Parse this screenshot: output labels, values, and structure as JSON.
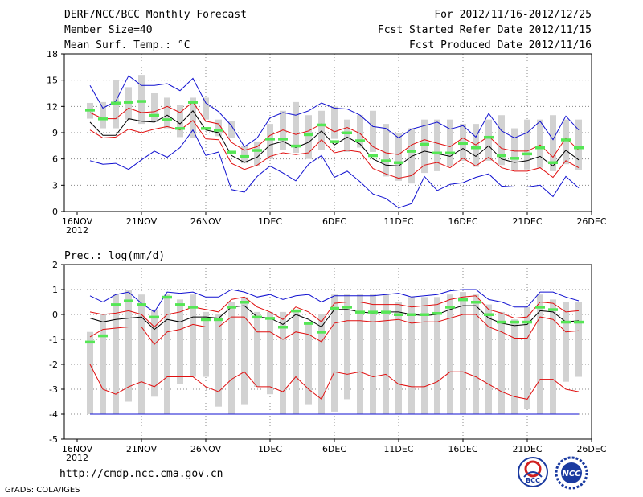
{
  "header": {
    "title": "DERF/NCC/BCC Monthly Forecast",
    "member_size": "Member Size=40",
    "variable": "Mean Surf. Temp.: °C",
    "period": "For 2012/11/16-2012/12/25",
    "fcst_started": "Fcst Started Refer Date 2012/11/15",
    "fcst_produced": "Fcst Produced Date 2012/11/16"
  },
  "footer": {
    "url": "http://cmdp.ncc.cma.gov.cn",
    "credit": "GrADS: COLA/IGES",
    "logo1": "BCC",
    "logo2": "NCC"
  },
  "colors": {
    "box": "#d2d2d2",
    "median": "#55e655",
    "mean": "#000000",
    "sd": "#e01010",
    "env": "#1010d0",
    "grid": "#888888"
  },
  "chart_data": [
    {
      "type": "box-ensemble",
      "title": "Mean Surf. Temp.: °C",
      "ylim": [
        0,
        18
      ],
      "yticks": [
        0,
        3,
        6,
        9,
        12,
        15,
        18
      ],
      "xlim": [
        0,
        40
      ],
      "xticks": [
        {
          "x": 0,
          "label": "16NOV",
          "sub": "2012"
        },
        {
          "x": 5,
          "label": "21NOV"
        },
        {
          "x": 10,
          "label": "26NOV"
        },
        {
          "x": 15,
          "label": "1DEC"
        },
        {
          "x": 20,
          "label": "6DEC"
        },
        {
          "x": 25,
          "label": "11DEC"
        },
        {
          "x": 30,
          "label": "16DEC"
        },
        {
          "x": 35,
          "label": "21DEC"
        },
        {
          "x": 40,
          "label": "26DEC"
        }
      ],
      "days": [
        1,
        2,
        3,
        4,
        5,
        6,
        7,
        8,
        9,
        10,
        11,
        12,
        13,
        14,
        15,
        16,
        17,
        18,
        19,
        20,
        21,
        22,
        23,
        24,
        25,
        26,
        27,
        28,
        29,
        30,
        31,
        32,
        33,
        34,
        35,
        36,
        37,
        38,
        39
      ],
      "box_low": [
        10.6,
        9.5,
        9.5,
        10.5,
        10.0,
        10.2,
        9.5,
        8.5,
        8.4,
        10.5,
        8.6,
        8.4,
        5.5,
        5.2,
        6.0,
        7.0,
        6.7,
        6.0,
        7.0,
        8.3,
        6.8,
        7.3,
        6.8,
        4.0,
        3.5,
        3.2,
        4.4,
        4.6,
        5.2,
        5.8,
        5.1,
        5.8,
        5.3,
        4.7,
        4.8,
        5.0,
        4.6,
        5.4,
        4.7
      ],
      "box_high": [
        12.4,
        12.5,
        15.0,
        14.2,
        15.6,
        13.5,
        13.0,
        12.2,
        13.0,
        13.0,
        10.5,
        10.3,
        7.5,
        8.0,
        10.0,
        11.5,
        12.5,
        11.0,
        11.5,
        12.0,
        10.5,
        11.0,
        11.5,
        10.0,
        9.0,
        9.5,
        10.5,
        10.5,
        10.5,
        10.0,
        10.0,
        10.5,
        11.0,
        9.5,
        10.5,
        10.5,
        11.0,
        10.5,
        10.5
      ],
      "median": [
        11.6,
        10.6,
        12.4,
        12.5,
        12.6,
        11.0,
        10.5,
        9.5,
        12.5,
        9.5,
        9.3,
        6.8,
        6.3,
        7.0,
        8.3,
        8.3,
        7.5,
        8.8,
        9.9,
        8.0,
        9.0,
        8.1,
        6.4,
        5.8,
        5.6,
        6.9,
        7.7,
        6.7,
        6.7,
        7.8,
        7.3,
        8.5,
        6.4,
        6.1,
        6.6,
        7.3,
        5.6,
        8.2,
        7.3
      ],
      "series": [
        {
          "name": "max",
          "color": "#1010d0",
          "values": [
            14.4,
            11.8,
            12.6,
            15.5,
            14.4,
            14.4,
            14.6,
            13.8,
            15.2,
            12.4,
            11.4,
            9.8,
            7.4,
            8.4,
            10.7,
            11.3,
            11.0,
            11.5,
            12.4,
            11.8,
            11.7,
            11.0,
            9.7,
            9.5,
            8.4,
            9.4,
            9.8,
            10.2,
            9.4,
            9.8,
            8.5,
            11.2,
            9.2,
            8.4,
            9.0,
            10.3,
            8.2,
            10.9,
            9.3
          ]
        },
        {
          "name": "mean+sd",
          "color": "#e01010",
          "values": [
            11.3,
            10.6,
            10.6,
            11.8,
            11.3,
            11.4,
            12.0,
            11.3,
            12.5,
            10.3,
            10.0,
            7.9,
            7.0,
            7.4,
            8.7,
            9.3,
            8.8,
            9.2,
            10.0,
            9.1,
            9.6,
            8.9,
            7.4,
            6.7,
            6.5,
            7.6,
            8.2,
            7.8,
            7.4,
            8.4,
            7.6,
            8.6,
            7.2,
            6.9,
            6.9,
            7.6,
            6.2,
            8.4,
            7.0
          ]
        },
        {
          "name": "mean",
          "color": "#000000",
          "values": [
            10.2,
            8.7,
            8.7,
            10.6,
            10.3,
            10.2,
            11.0,
            10.0,
            11.5,
            9.3,
            9.0,
            6.4,
            5.6,
            6.2,
            7.6,
            8.0,
            7.3,
            7.9,
            9.2,
            7.6,
            8.5,
            7.7,
            6.0,
            5.3,
            5.2,
            6.3,
            6.9,
            6.6,
            6.3,
            7.2,
            6.3,
            7.5,
            6.0,
            5.6,
            5.8,
            6.3,
            5.2,
            7.0,
            5.9
          ]
        },
        {
          "name": "mean-sd",
          "color": "#e01010",
          "values": [
            9.3,
            8.4,
            8.5,
            9.4,
            9.0,
            9.4,
            9.7,
            9.3,
            10.4,
            8.3,
            8.2,
            5.5,
            4.8,
            5.3,
            6.3,
            6.7,
            6.5,
            6.7,
            8.2,
            6.7,
            7.0,
            6.8,
            4.9,
            4.3,
            3.8,
            4.1,
            5.3,
            5.6,
            5.0,
            6.1,
            5.2,
            6.2,
            5.0,
            4.6,
            4.6,
            5.0,
            3.9,
            5.8,
            5.0
          ]
        },
        {
          "name": "min",
          "color": "#1010d0",
          "values": [
            5.8,
            5.4,
            5.5,
            4.8,
            5.9,
            6.9,
            6.2,
            7.3,
            9.3,
            6.4,
            6.8,
            2.5,
            2.2,
            4.0,
            5.2,
            4.4,
            3.5,
            5.4,
            6.4,
            3.9,
            4.6,
            3.4,
            2.0,
            1.5,
            0.4,
            0.9,
            4.0,
            2.4,
            3.1,
            3.3,
            3.9,
            4.3,
            2.9,
            2.8,
            2.8,
            3.0,
            1.7,
            4.0,
            2.7
          ]
        }
      ]
    },
    {
      "type": "box-ensemble",
      "title": "Prec.: log(mm/d)",
      "ylim": [
        -5,
        2
      ],
      "yticks": [
        -5,
        -4,
        -3,
        -2,
        -1,
        0,
        1,
        2
      ],
      "xlim": [
        0,
        40
      ],
      "xticks": [
        {
          "x": 0,
          "label": "16NOV",
          "sub": "2012"
        },
        {
          "x": 5,
          "label": "21NOV"
        },
        {
          "x": 10,
          "label": "26NOV"
        },
        {
          "x": 15,
          "label": "1DEC"
        },
        {
          "x": 20,
          "label": "6DEC"
        },
        {
          "x": 25,
          "label": "11DEC"
        },
        {
          "x": 30,
          "label": "16DEC"
        },
        {
          "x": 35,
          "label": "21DEC"
        },
        {
          "x": 40,
          "label": "26DEC"
        }
      ],
      "days": [
        1,
        2,
        3,
        4,
        5,
        6,
        7,
        8,
        9,
        10,
        11,
        12,
        13,
        14,
        15,
        16,
        17,
        18,
        19,
        20,
        21,
        22,
        23,
        24,
        25,
        26,
        27,
        28,
        29,
        30,
        31,
        32,
        33,
        34,
        35,
        36,
        37,
        38,
        39
      ],
      "box_low": [
        -4.0,
        -4.0,
        -4.0,
        -3.5,
        -4.0,
        -3.3,
        -4.0,
        -2.8,
        -2.5,
        -2.5,
        -3.7,
        -4.0,
        -3.6,
        -2.9,
        -3.2,
        -4.0,
        -4.0,
        -3.6,
        -4.0,
        -3.9,
        -3.4,
        -4.0,
        -4.0,
        -4.0,
        -4.0,
        -4.0,
        -4.0,
        -4.0,
        -4.0,
        -4.0,
        -4.0,
        -4.0,
        -4.0,
        -4.0,
        -3.8,
        -4.0,
        -4.0,
        -2.7,
        -2.5
      ],
      "box_high": [
        -0.7,
        0.0,
        0.8,
        1.0,
        0.8,
        0.2,
        0.8,
        0.6,
        0.8,
        0.1,
        0.0,
        0.5,
        0.7,
        0.1,
        0.1,
        0.1,
        0.2,
        -0.3,
        0.0,
        0.8,
        0.8,
        0.8,
        0.8,
        0.8,
        0.5,
        0.7,
        0.7,
        0.7,
        0.8,
        0.9,
        0.8,
        0.4,
        0.1,
        -0.2,
        0.3,
        0.8,
        0.6,
        0.5,
        0.5
      ],
      "median": [
        -1.1,
        -0.85,
        0.4,
        0.55,
        0.4,
        -0.1,
        0.7,
        0.4,
        0.3,
        -0.2,
        -0.2,
        0.3,
        0.5,
        -0.1,
        -0.15,
        -0.5,
        0.15,
        -0.35,
        -0.7,
        0.25,
        0.3,
        0.1,
        0.1,
        0.1,
        0.0,
        0.0,
        0.0,
        0.05,
        0.3,
        0.6,
        0.5,
        0.0,
        -0.3,
        -0.3,
        -0.3,
        0.3,
        0.2,
        -0.3,
        -0.3
      ],
      "series": [
        {
          "name": "max",
          "color": "#1010d0",
          "values": [
            0.75,
            0.5,
            0.8,
            0.9,
            0.45,
            0.1,
            0.9,
            0.85,
            0.9,
            0.7,
            0.7,
            1.0,
            0.9,
            0.7,
            0.8,
            0.6,
            0.75,
            0.8,
            0.5,
            0.75,
            0.75,
            0.75,
            0.75,
            0.8,
            0.85,
            0.7,
            0.75,
            0.8,
            0.95,
            1.0,
            1.0,
            0.6,
            0.5,
            0.3,
            0.3,
            0.9,
            0.9,
            0.7,
            0.55
          ]
        },
        {
          "name": "mean+sd",
          "color": "#e01010",
          "values": [
            0.1,
            0.0,
            0.05,
            0.15,
            0.0,
            -0.5,
            0.0,
            0.1,
            0.3,
            0.2,
            0.1,
            0.6,
            0.7,
            0.3,
            0.1,
            -0.2,
            0.3,
            0.1,
            -0.3,
            0.45,
            0.5,
            0.5,
            0.4,
            0.4,
            0.4,
            0.3,
            0.35,
            0.4,
            0.6,
            0.7,
            0.75,
            0.2,
            0.05,
            -0.15,
            -0.1,
            0.5,
            0.45,
            0.1,
            0.15
          ]
        },
        {
          "name": "mean",
          "color": "#000000",
          "values": [
            -0.15,
            -0.3,
            -0.2,
            -0.15,
            -0.1,
            -0.6,
            -0.2,
            -0.3,
            -0.1,
            -0.1,
            -0.15,
            0.3,
            0.35,
            -0.1,
            -0.15,
            -0.4,
            0.0,
            -0.2,
            -0.5,
            0.2,
            0.2,
            0.1,
            0.05,
            0.1,
            0.1,
            0.0,
            -0.05,
            0.0,
            0.2,
            0.35,
            0.35,
            -0.15,
            -0.35,
            -0.45,
            -0.4,
            0.15,
            0.1,
            -0.3,
            -0.25
          ]
        },
        {
          "name": "mean-sd",
          "color": "#e01010",
          "values": [
            -0.9,
            -0.6,
            -0.55,
            -0.5,
            -0.5,
            -1.2,
            -0.7,
            -0.6,
            -0.4,
            -0.5,
            -0.5,
            -0.1,
            -0.1,
            -0.7,
            -0.7,
            -1.0,
            -0.7,
            -0.8,
            -1.1,
            -0.35,
            -0.25,
            -0.25,
            -0.3,
            -0.25,
            -0.2,
            -0.35,
            -0.3,
            -0.3,
            -0.15,
            0.0,
            0.0,
            -0.5,
            -0.7,
            -0.95,
            -0.95,
            -0.1,
            -0.2,
            -0.7,
            -0.65
          ]
        },
        {
          "name": "mean-2sd",
          "color": "#e01010",
          "values": [
            -2.0,
            -3.0,
            -3.2,
            -2.9,
            -2.7,
            -2.9,
            -2.5,
            -2.5,
            -2.5,
            -2.9,
            -3.1,
            -2.6,
            -2.3,
            -2.9,
            -2.9,
            -3.1,
            -2.5,
            -3.0,
            -3.4,
            -2.3,
            -2.4,
            -2.3,
            -2.5,
            -2.4,
            -2.8,
            -2.9,
            -2.9,
            -2.7,
            -2.3,
            -2.3,
            -2.5,
            -2.8,
            -3.1,
            -3.3,
            -3.4,
            -2.6,
            -2.6,
            -3.0,
            -3.1
          ]
        },
        {
          "name": "min",
          "color": "#1010d0",
          "values": [
            -4.0,
            -4.0,
            -4.0,
            -4.0,
            -4.0,
            -4.0,
            -4.0,
            -4.0,
            -4.0,
            -4.0,
            -4.0,
            -4.0,
            -4.0,
            -4.0,
            -4.0,
            -4.0,
            -4.0,
            -4.0,
            -4.0,
            -4.0,
            -4.0,
            -4.0,
            -4.0,
            -4.0,
            -4.0,
            -4.0,
            -4.0,
            -4.0,
            -4.0,
            -4.0,
            -4.0,
            -4.0,
            -4.0,
            -4.0,
            -4.0,
            -4.0,
            -4.0,
            -4.0,
            -4.0
          ]
        }
      ]
    }
  ]
}
